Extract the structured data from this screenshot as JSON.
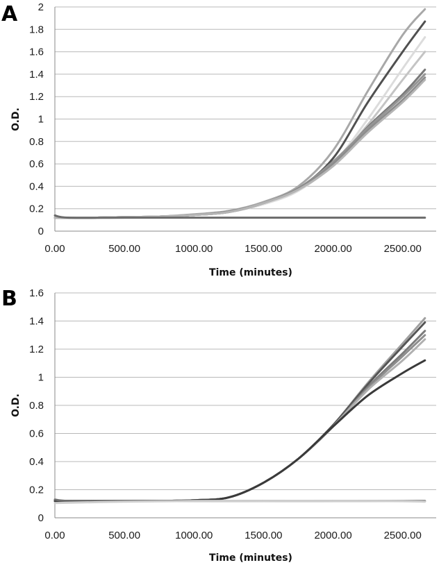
{
  "chart_data": [
    {
      "type": "line",
      "panel_label": "A",
      "xlabel": "Time (minutes)",
      "ylabel": "O.D.",
      "xlim": [
        0,
        2700
      ],
      "ylim": [
        0,
        2
      ],
      "x_ticks": [
        "0.00",
        "500.00",
        "1000.00",
        "1500.00",
        "2000.00",
        "2500.00"
      ],
      "x_tick_values": [
        0,
        500,
        1000,
        1500,
        2000,
        2500
      ],
      "y_ticks": [
        "0",
        "0.2",
        "0.4",
        "0.6",
        "0.8",
        "1",
        "1.2",
        "1.4",
        "1.6",
        "1.8",
        "2"
      ],
      "y_tick_values": [
        0,
        0.2,
        0.4,
        0.6,
        0.8,
        1,
        1.2,
        1.4,
        1.6,
        1.8,
        2
      ],
      "grid": "horizontal",
      "legend": "none",
      "series": [
        {
          "color": "#a8a8a8",
          "x": [
            0,
            250,
            500,
            750,
            1000,
            1250,
            1500,
            1750,
            2000,
            2250,
            2500,
            2660
          ],
          "y": [
            0.12,
            0.12,
            0.125,
            0.13,
            0.15,
            0.18,
            0.26,
            0.4,
            0.72,
            1.25,
            1.75,
            1.98
          ]
        },
        {
          "color": "#505050",
          "x": [
            0,
            250,
            500,
            750,
            1000,
            1250,
            1500,
            1750,
            2000,
            2250,
            2500,
            2660
          ],
          "y": [
            0.12,
            0.12,
            0.125,
            0.13,
            0.145,
            0.175,
            0.25,
            0.38,
            0.65,
            1.15,
            1.6,
            1.87
          ]
        },
        {
          "color": "#dcdcdc",
          "x": [
            0,
            250,
            500,
            750,
            1000,
            1250,
            1500,
            1750,
            2000,
            2250,
            2500,
            2660
          ],
          "y": [
            0.12,
            0.12,
            0.125,
            0.13,
            0.145,
            0.17,
            0.24,
            0.36,
            0.6,
            1.0,
            1.45,
            1.73
          ]
        },
        {
          "color": "#c4c4c4",
          "x": [
            0,
            250,
            500,
            750,
            1000,
            1250,
            1500,
            1750,
            2000,
            2250,
            2500,
            2660
          ],
          "y": [
            0.12,
            0.12,
            0.125,
            0.13,
            0.145,
            0.17,
            0.25,
            0.37,
            0.6,
            0.95,
            1.35,
            1.6
          ]
        },
        {
          "color": "#7a7a7a",
          "x": [
            0,
            250,
            500,
            750,
            1000,
            1250,
            1500,
            1750,
            2000,
            2250,
            2500,
            2660
          ],
          "y": [
            0.12,
            0.12,
            0.125,
            0.13,
            0.145,
            0.17,
            0.25,
            0.38,
            0.6,
            0.93,
            1.22,
            1.44
          ]
        },
        {
          "color": "#959595",
          "x": [
            0,
            250,
            500,
            750,
            1000,
            1250,
            1500,
            1750,
            2000,
            2250,
            2500,
            2660
          ],
          "y": [
            0.12,
            0.12,
            0.125,
            0.13,
            0.145,
            0.175,
            0.25,
            0.38,
            0.62,
            0.92,
            1.2,
            1.4
          ]
        },
        {
          "color": "#8c8c8c",
          "x": [
            0,
            250,
            500,
            750,
            1000,
            1250,
            1500,
            1750,
            2000,
            2250,
            2500,
            2660
          ],
          "y": [
            0.12,
            0.12,
            0.125,
            0.13,
            0.145,
            0.17,
            0.25,
            0.38,
            0.6,
            0.9,
            1.17,
            1.37
          ]
        },
        {
          "color": "#b5b5b5",
          "x": [
            0,
            250,
            500,
            750,
            1000,
            1250,
            1500,
            1750,
            2000,
            2250,
            2500,
            2660
          ],
          "y": [
            0.12,
            0.12,
            0.125,
            0.13,
            0.145,
            0.17,
            0.25,
            0.37,
            0.58,
            0.88,
            1.15,
            1.35
          ]
        },
        {
          "color": "#6a6a6a",
          "x": [
            0,
            100,
            500,
            1000,
            1500,
            2000,
            2500,
            2660
          ],
          "y": [
            0.14,
            0.12,
            0.12,
            0.12,
            0.12,
            0.12,
            0.12,
            0.12
          ]
        }
      ]
    },
    {
      "type": "line",
      "panel_label": "B",
      "xlabel": "Time (minutes)",
      "ylabel": "O.D.",
      "xlim": [
        0,
        2700
      ],
      "ylim": [
        0,
        1.6
      ],
      "x_ticks": [
        "0.00",
        "500.00",
        "1000.00",
        "1500.00",
        "2000.00",
        "2500.00"
      ],
      "x_tick_values": [
        0,
        500,
        1000,
        1500,
        2000,
        2500
      ],
      "y_ticks": [
        "0",
        "0.2",
        "0.4",
        "0.6",
        "0.8",
        "1",
        "1.2",
        "1.4",
        "1.6"
      ],
      "y_tick_values": [
        0,
        0.2,
        0.4,
        0.6,
        0.8,
        1,
        1.2,
        1.4,
        1.6
      ],
      "grid": "horizontal",
      "legend": "none",
      "series": [
        {
          "color": "#a0a0a0",
          "x": [
            0,
            250,
            500,
            750,
            1000,
            1250,
            1500,
            1750,
            2000,
            2250,
            2500,
            2660
          ],
          "y": [
            0.12,
            0.12,
            0.12,
            0.12,
            0.125,
            0.145,
            0.25,
            0.42,
            0.66,
            0.96,
            1.24,
            1.42
          ]
        },
        {
          "color": "#555555",
          "x": [
            0,
            250,
            500,
            750,
            1000,
            1250,
            1500,
            1750,
            2000,
            2250,
            2500,
            2660
          ],
          "y": [
            0.12,
            0.12,
            0.12,
            0.12,
            0.125,
            0.145,
            0.25,
            0.42,
            0.66,
            0.95,
            1.22,
            1.39
          ]
        },
        {
          "color": "#7c7c7c",
          "x": [
            0,
            250,
            500,
            750,
            1000,
            1250,
            1500,
            1750,
            2000,
            2250,
            2500,
            2660
          ],
          "y": [
            0.12,
            0.12,
            0.12,
            0.12,
            0.125,
            0.145,
            0.25,
            0.42,
            0.65,
            0.93,
            1.17,
            1.33
          ]
        },
        {
          "color": "#8e8e8e",
          "x": [
            0,
            250,
            500,
            750,
            1000,
            1250,
            1500,
            1750,
            2000,
            2250,
            2500,
            2660
          ],
          "y": [
            0.12,
            0.12,
            0.12,
            0.12,
            0.125,
            0.145,
            0.25,
            0.42,
            0.65,
            0.92,
            1.15,
            1.3
          ]
        },
        {
          "color": "#b0b0b0",
          "x": [
            0,
            250,
            500,
            750,
            1000,
            1250,
            1500,
            1750,
            2000,
            2250,
            2500,
            2660
          ],
          "y": [
            0.12,
            0.12,
            0.12,
            0.12,
            0.125,
            0.145,
            0.25,
            0.42,
            0.65,
            0.91,
            1.12,
            1.27
          ]
        },
        {
          "color": "#3a3a3a",
          "x": [
            0,
            250,
            500,
            750,
            1000,
            1250,
            1500,
            1750,
            2000,
            2250,
            2500,
            2660
          ],
          "y": [
            0.12,
            0.12,
            0.12,
            0.12,
            0.125,
            0.145,
            0.25,
            0.42,
            0.65,
            0.87,
            1.03,
            1.12
          ]
        },
        {
          "color": "#6e6e6e",
          "x": [
            0,
            100,
            500,
            1000,
            1500,
            2000,
            2500,
            2660
          ],
          "y": [
            0.13,
            0.12,
            0.12,
            0.12,
            0.12,
            0.12,
            0.12,
            0.12
          ]
        },
        {
          "color": "#cfcfcf",
          "x": [
            0,
            500,
            1000,
            1500,
            2000,
            2500,
            2660
          ],
          "y": [
            0.105,
            0.115,
            0.12,
            0.12,
            0.12,
            0.118,
            0.115
          ]
        }
      ]
    }
  ]
}
